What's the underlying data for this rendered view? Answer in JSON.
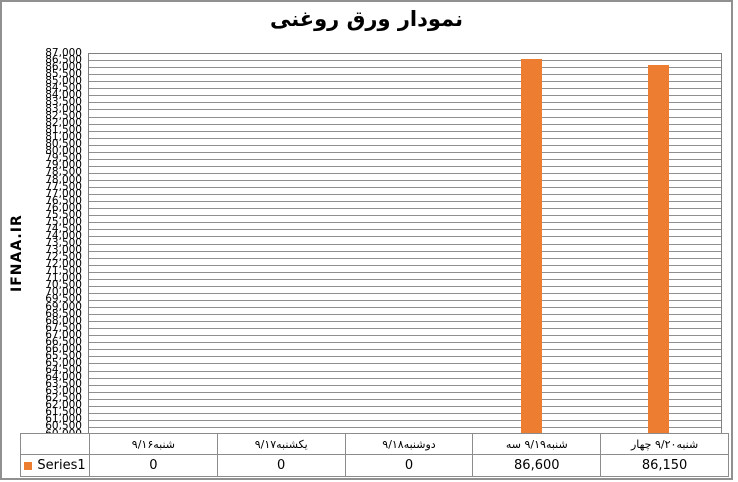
{
  "chart_data": {
    "type": "bar",
    "title": "نمودار ورق روغنی",
    "ylabel": "IFNAA.IR",
    "categories": [
      "شنبه ۹/۱۶",
      "یکشنبه ۹/۱۷",
      "دوشنبه ۹/۱۸",
      "سه شنبه ۹/۱۹",
      "چهار شنبه ۹/۲۰"
    ],
    "categories_display_parts": [
      [
        "شنبه۹/۱۶"
      ],
      [
        "یکشنبه۹/۱۷"
      ],
      [
        "دوشنبه۹/۱۸"
      ],
      [
        "سه ",
        "شنبه۹/۱۹"
      ],
      [
        "چهار ",
        "شنبه۹/۲۰"
      ]
    ],
    "series": [
      {
        "name": "Series1",
        "values": [
          0,
          0,
          0,
          86600,
          86150
        ]
      }
    ],
    "value_labels": [
      "0",
      "0",
      "0",
      "86,600",
      "86,150"
    ],
    "ylim": [
      60000,
      87000
    ],
    "ytick_step": 500,
    "ytick_format": "thousands-comma",
    "grid": true,
    "legend_position": "bottom-left",
    "bar_color": "#ED7D31"
  },
  "colors": {
    "bar": "#ED7D31",
    "gridline": "#8F8F8F",
    "axis_border": "#808080",
    "table_border": "#8C8C8C",
    "frame": "#909090",
    "text": "#000000",
    "background": "#FFFFFF"
  }
}
